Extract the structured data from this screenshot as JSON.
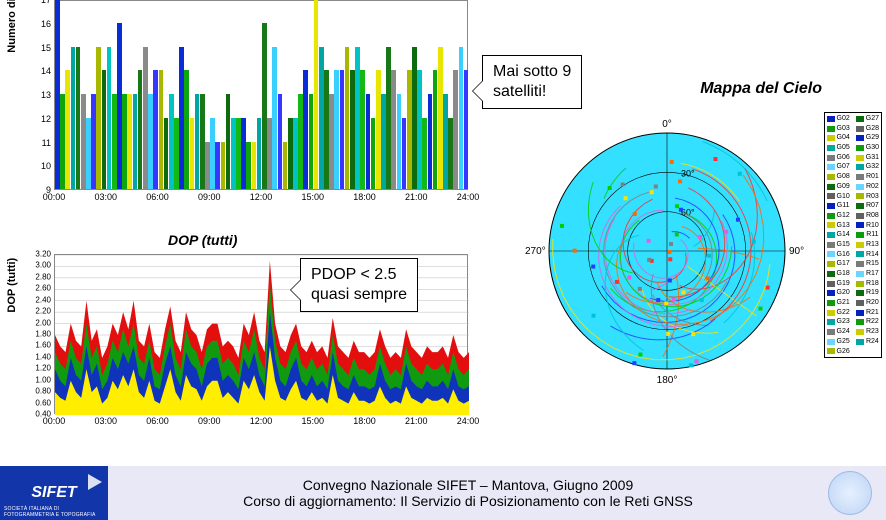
{
  "sat_chart": {
    "ylabel": "Numero di Satelliti",
    "ylim": [
      9,
      17
    ],
    "xticks": [
      "00:00",
      "03:00",
      "06:00",
      "09:00",
      "12:00",
      "15:00",
      "18:00",
      "21:00",
      "24:00"
    ],
    "colors": [
      "#0a2cd6",
      "#0fa50f",
      "#e6e600",
      "#00a6a2",
      "#187818",
      "#8a8a8a",
      "#39d0ff",
      "#3636ff",
      "#a8b800",
      "#0d6b0d",
      "#00c3c3",
      "#14b814"
    ],
    "values": [
      17,
      13,
      14,
      15,
      15,
      13,
      12,
      13,
      15,
      14,
      15,
      13,
      16,
      13,
      13,
      13,
      14,
      15,
      13,
      14,
      14,
      12,
      13,
      12,
      15,
      14,
      12,
      13,
      13,
      11,
      12,
      11,
      11,
      13,
      12,
      12,
      12,
      11,
      11,
      12,
      16,
      12,
      15,
      13,
      11,
      12,
      12,
      13,
      14,
      13,
      17,
      15,
      14,
      13,
      14,
      14,
      15,
      14,
      15,
      14,
      13,
      12,
      14,
      13,
      15,
      14,
      13,
      12,
      14,
      15,
      14,
      12,
      13,
      14,
      15,
      13,
      12,
      14,
      15,
      14
    ]
  },
  "callout1": {
    "l1": "Mai sotto 9",
    "l2": "satelliti!"
  },
  "callout2": {
    "l1": "PDOP < 2.5",
    "l2": "quasi sempre"
  },
  "dop_chart": {
    "title": "DOP (tutti)",
    "ylabel": "DOP (tutti)",
    "ylim": [
      0.4,
      3.2
    ],
    "ytick_step": 0.2,
    "xticks": [
      "00:00",
      "03:00",
      "06:00",
      "09:00",
      "12:00",
      "15:00",
      "18:00",
      "21:00",
      "24:00"
    ],
    "colors": {
      "bg": "#ffffff",
      "yellow": "#ffee00",
      "blue": "#1033bb",
      "green": "#0f9a0f",
      "red": "#e30f0f",
      "grid": "#bcbcbc"
    },
    "red": [
      1.8,
      1.6,
      1.5,
      2.0,
      1.7,
      1.6,
      2.4,
      1.7,
      1.9,
      1.4,
      1.6,
      2.0,
      1.8,
      2.2,
      1.9,
      2.4,
      1.7,
      1.6,
      2.0,
      1.5,
      1.4,
      1.9,
      2.3,
      1.7,
      1.5,
      2.2,
      1.9,
      1.8,
      1.5,
      1.9,
      2.0,
      2.0,
      1.6,
      1.7,
      1.6,
      1.4,
      2.0,
      1.8,
      2.2,
      1.7,
      1.5,
      3.1,
      2.0,
      1.6,
      1.5,
      1.8,
      2.0,
      1.6,
      1.5,
      1.7,
      1.5,
      1.6,
      1.4,
      2.1,
      1.6,
      1.5,
      1.4,
      1.7,
      1.5,
      1.5,
      1.4,
      1.5,
      1.9,
      1.6,
      1.4,
      1.5,
      1.4,
      1.9,
      1.6,
      1.5,
      1.4,
      1.6,
      1.5,
      1.5,
      1.6,
      1.4,
      1.8,
      1.5,
      1.4,
      1.5
    ],
    "green": [
      1.5,
      1.3,
      1.2,
      1.7,
      1.4,
      1.3,
      2.0,
      1.4,
      1.6,
      1.1,
      1.3,
      1.7,
      1.5,
      1.9,
      1.6,
      2.0,
      1.4,
      1.3,
      1.7,
      1.2,
      1.1,
      1.6,
      2.0,
      1.4,
      1.2,
      1.9,
      1.6,
      1.5,
      1.2,
      1.6,
      1.7,
      1.7,
      1.3,
      1.4,
      1.3,
      1.1,
      1.7,
      1.5,
      1.9,
      1.4,
      1.2,
      2.7,
      1.7,
      1.3,
      1.2,
      1.5,
      1.7,
      1.3,
      1.2,
      1.4,
      1.2,
      1.3,
      1.1,
      1.8,
      1.3,
      1.2,
      1.1,
      1.4,
      1.2,
      1.2,
      1.1,
      1.2,
      1.6,
      1.3,
      1.1,
      1.2,
      1.1,
      1.6,
      1.3,
      1.2,
      1.1,
      1.3,
      1.2,
      1.2,
      1.3,
      1.1,
      1.5,
      1.2,
      1.1,
      1.2
    ],
    "blue": [
      1.2,
      1.0,
      0.9,
      1.4,
      1.1,
      1.0,
      1.6,
      1.1,
      1.3,
      0.85,
      1.0,
      1.4,
      1.2,
      1.5,
      1.3,
      1.6,
      1.1,
      1.0,
      1.4,
      0.9,
      0.85,
      1.3,
      1.6,
      1.1,
      0.9,
      1.5,
      1.3,
      1.2,
      0.9,
      1.3,
      1.4,
      1.4,
      1.0,
      1.1,
      1.0,
      0.85,
      1.4,
      1.2,
      1.5,
      1.1,
      0.9,
      2.2,
      1.4,
      1.0,
      0.9,
      1.2,
      1.4,
      1.0,
      0.9,
      1.1,
      0.9,
      1.0,
      0.85,
      1.5,
      1.0,
      0.9,
      0.85,
      1.1,
      0.9,
      0.9,
      0.85,
      0.9,
      1.3,
      1.0,
      0.85,
      0.9,
      0.85,
      1.3,
      1.0,
      0.9,
      0.85,
      1.0,
      0.9,
      0.9,
      1.0,
      0.85,
      1.2,
      0.9,
      0.85,
      0.9
    ],
    "yellow": [
      0.8,
      0.7,
      0.65,
      1.0,
      0.8,
      0.7,
      1.2,
      0.8,
      0.9,
      0.6,
      0.7,
      1.0,
      0.85,
      1.1,
      0.9,
      1.2,
      0.8,
      0.7,
      1.0,
      0.65,
      0.6,
      0.9,
      1.2,
      0.8,
      0.65,
      1.1,
      0.9,
      0.85,
      0.65,
      0.9,
      1.0,
      1.0,
      0.7,
      0.8,
      0.7,
      0.6,
      1.0,
      0.85,
      1.1,
      0.8,
      0.65,
      1.6,
      1.0,
      0.7,
      0.65,
      0.85,
      1.0,
      0.7,
      0.65,
      0.8,
      0.65,
      0.7,
      0.6,
      1.1,
      0.7,
      0.65,
      0.6,
      0.8,
      0.65,
      0.65,
      0.6,
      0.65,
      0.9,
      0.7,
      0.6,
      0.65,
      0.6,
      0.9,
      0.7,
      0.65,
      0.6,
      0.7,
      0.65,
      0.65,
      0.7,
      0.6,
      0.85,
      0.65,
      0.6,
      0.65
    ]
  },
  "sky": {
    "title": "Mappa del Cielo",
    "bg": "#33e0ff",
    "ring_labels": [
      "30°",
      "60°"
    ],
    "dir": {
      "n": "0°",
      "e": "90°",
      "s": "180°",
      "w": "270°"
    },
    "legend1": [
      [
        "G02",
        "#0620c0"
      ],
      [
        "G03",
        "#0f9a0f"
      ],
      [
        "G04",
        "#cccc00"
      ],
      [
        "G05",
        "#00a6a2"
      ],
      [
        "G06",
        "#7a7a7a"
      ],
      [
        "G07",
        "#6ad6ff"
      ],
      [
        "G08",
        "#a8b800"
      ],
      [
        "G09",
        "#0d6b0d"
      ],
      [
        "G10",
        "#606060"
      ],
      [
        "G11",
        "#0620c0"
      ],
      [
        "G12",
        "#0f9a0f"
      ],
      [
        "G13",
        "#cccc00"
      ],
      [
        "G14",
        "#00a6a2"
      ],
      [
        "G15",
        "#7a7a7a"
      ],
      [
        "G16",
        "#6ad6ff"
      ],
      [
        "G17",
        "#a8b800"
      ],
      [
        "G18",
        "#0d6b0d"
      ],
      [
        "G19",
        "#606060"
      ],
      [
        "G20",
        "#0620c0"
      ],
      [
        "G21",
        "#0f9a0f"
      ],
      [
        "G22",
        "#cccc00"
      ],
      [
        "G23",
        "#00a6a2"
      ],
      [
        "G24",
        "#7a7a7a"
      ],
      [
        "G25",
        "#6ad6ff"
      ],
      [
        "G26",
        "#a8b800"
      ]
    ],
    "legend2": [
      [
        "G27",
        "#0d6b0d"
      ],
      [
        "G28",
        "#606060"
      ],
      [
        "G29",
        "#0620c0"
      ],
      [
        "G30",
        "#0f9a0f"
      ],
      [
        "G31",
        "#cccc00"
      ],
      [
        "G32",
        "#00a6a2"
      ],
      [
        "R01",
        "#7a7a7a"
      ],
      [
        "R02",
        "#6ad6ff"
      ],
      [
        "R03",
        "#a8b800"
      ],
      [
        "R07",
        "#0d6b0d"
      ],
      [
        "R08",
        "#606060"
      ],
      [
        "R10",
        "#0620c0"
      ],
      [
        "R11",
        "#0f9a0f"
      ],
      [
        "R13",
        "#cccc00"
      ],
      [
        "R14",
        "#00a6a2"
      ],
      [
        "R15",
        "#7a7a7a"
      ],
      [
        "R17",
        "#6ad6ff"
      ],
      [
        "R18",
        "#a8b800"
      ],
      [
        "R19",
        "#0d6b0d"
      ],
      [
        "R20",
        "#606060"
      ],
      [
        "R21",
        "#0620c0"
      ],
      [
        "R22",
        "#0f9a0f"
      ],
      [
        "R23",
        "#cccc00"
      ],
      [
        "R24",
        "#00a6a2"
      ]
    ]
  },
  "footer": {
    "org": "SIFET",
    "org_sub": "SOCIETÀ ITALIANA DI FOTOGRAMMETRIA E TOPOGRAFIA",
    "line1": "Convegno Nazionale SIFET – Mantova, Giugno 2009",
    "line2": "Corso di aggiornamento: Il Servizio di Posizionamento con le Reti GNSS"
  }
}
